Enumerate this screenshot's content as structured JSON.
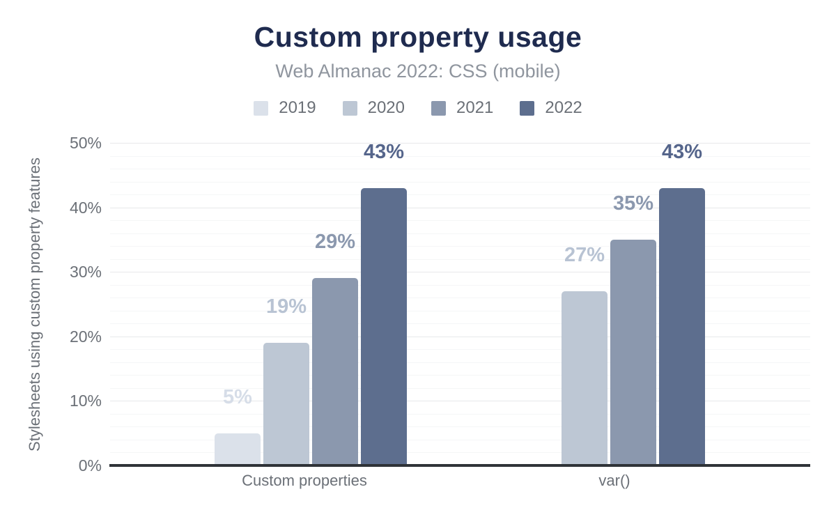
{
  "chart_data": {
    "type": "bar",
    "title": "Custom property usage",
    "subtitle": "Web Almanac 2022: CSS (mobile)",
    "ylabel": "Stylesheets using custom property features",
    "xlabel": "",
    "categories": [
      "Custom properties",
      "var()"
    ],
    "series": [
      {
        "name": "2019",
        "color": "#dbe1ea",
        "label_color": "#d6dde8",
        "values": [
          5,
          null
        ]
      },
      {
        "name": "2020",
        "color": "#bdc7d4",
        "label_color": "#b8c3d3",
        "values": [
          19,
          27
        ]
      },
      {
        "name": "2021",
        "color": "#8b98ae",
        "label_color": "#8b98ae",
        "values": [
          29,
          35
        ]
      },
      {
        "name": "2022",
        "color": "#5d6e8e",
        "label_color": "#55658b",
        "values": [
          43,
          43
        ]
      }
    ],
    "ylim": [
      0,
      50
    ],
    "yticks": [
      0,
      10,
      20,
      30,
      40,
      50
    ],
    "ytick_suffix": "%",
    "value_suffix": "%",
    "grid": {
      "major_step": 10,
      "minor_step": 2,
      "grid_on": true
    },
    "legend_position": "top",
    "colors": {
      "title": "#1f2b4f",
      "subtitle": "#8f959e",
      "axis_text": "#6b7077",
      "axis_line": "#2f3338",
      "grid_major": "#e7e8ea",
      "grid_minor": "#f5f6f7",
      "background": "#ffffff"
    }
  }
}
